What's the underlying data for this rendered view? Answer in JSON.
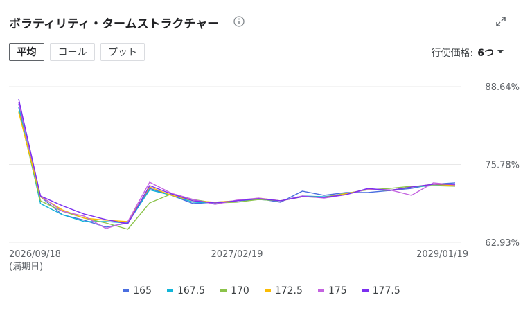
{
  "header": {
    "title": "ボラティリティ・タームストラクチャー"
  },
  "controls": {
    "buttons": [
      "平均",
      "コール",
      "プット"
    ],
    "strike_label": "行使価格:",
    "strike_value": "6つ"
  },
  "chart_data": {
    "type": "line",
    "categories": [
      "2026/09/18",
      null,
      null,
      null,
      null,
      null,
      null,
      null,
      null,
      null,
      "2027/02/19",
      null,
      null,
      null,
      null,
      null,
      null,
      null,
      null,
      null,
      "2029/01/19"
    ],
    "x_sublabel": "(満期日)",
    "ylim": [
      62.93,
      88.64
    ],
    "yticks": [
      {
        "value": 62.93,
        "label": "62.93%"
      },
      {
        "value": 75.78,
        "label": "75.78%"
      },
      {
        "value": 88.64,
        "label": "88.64%"
      }
    ],
    "grid": true,
    "series": [
      {
        "name": "165",
        "color": "#4a6ee0",
        "values": [
          85.78,
          70.47,
          67.5,
          66.59,
          65.45,
          66.13,
          71.84,
          70.7,
          69.33,
          69.56,
          69.79,
          70.13,
          69.56,
          71.39,
          70.7,
          71.16,
          71.16,
          71.5,
          71.84,
          72.53,
          72.76
        ]
      },
      {
        "name": "167.5",
        "color": "#12b5d8",
        "values": [
          85.21,
          69.33,
          67.5,
          66.36,
          66.36,
          66.13,
          71.61,
          70.7,
          69.56,
          69.44,
          69.79,
          70.01,
          69.79,
          70.59,
          70.47,
          70.93,
          71.73,
          71.5,
          72.07,
          72.3,
          72.41
        ]
      },
      {
        "name": "170",
        "color": "#8bc34a",
        "values": [
          84.64,
          69.79,
          68.07,
          66.93,
          66.13,
          65.1,
          69.44,
          70.93,
          70.01,
          69.44,
          69.56,
          70.01,
          69.79,
          70.47,
          70.36,
          71.04,
          71.61,
          71.84,
          72.19,
          72.3,
          72.19
        ]
      },
      {
        "name": "172.5",
        "color": "#fbbc04",
        "values": [
          84.41,
          70.47,
          68.3,
          66.93,
          66.59,
          66.36,
          72.07,
          70.7,
          69.79,
          69.56,
          69.79,
          70.24,
          69.79,
          70.47,
          70.36,
          70.93,
          71.73,
          71.5,
          72.07,
          72.53,
          72.3
        ]
      },
      {
        "name": "175",
        "color": "#c463e0",
        "values": [
          86.01,
          70.59,
          68.07,
          67.27,
          65.21,
          66.36,
          72.87,
          71.04,
          70.01,
          69.21,
          69.9,
          70.24,
          69.79,
          70.59,
          70.24,
          70.81,
          71.73,
          71.61,
          70.7,
          72.76,
          72.41
        ]
      },
      {
        "name": "177.5",
        "color": "#7b2ff0",
        "values": [
          86.58,
          70.59,
          68.99,
          67.61,
          66.7,
          66.01,
          72.3,
          70.93,
          69.79,
          69.44,
          69.79,
          70.13,
          69.79,
          70.47,
          70.36,
          70.81,
          71.84,
          71.5,
          72.07,
          72.53,
          72.53
        ]
      }
    ]
  }
}
